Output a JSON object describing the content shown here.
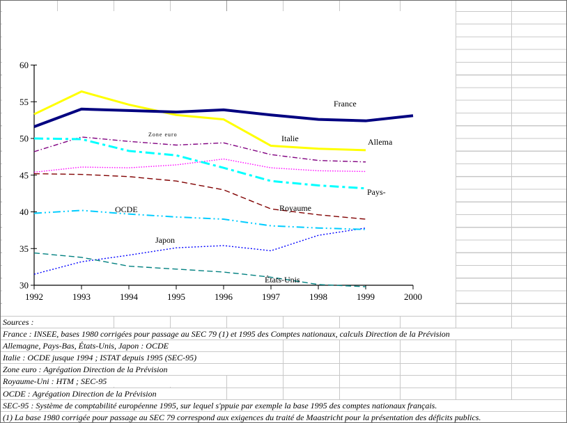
{
  "chart_data": {
    "type": "line",
    "x": [
      1992,
      1993,
      1994,
      1995,
      1996,
      1997,
      1998,
      1999,
      2000
    ],
    "ylim": [
      30,
      60
    ],
    "y_ticks": [
      30,
      35,
      40,
      45,
      50,
      55,
      60
    ],
    "x_ticks": [
      "1992",
      "1993",
      "1994",
      "1995",
      "1996",
      "1997",
      "1998",
      "1999",
      "2000"
    ],
    "grid": false,
    "legend": "inline-labels",
    "series": [
      {
        "name": "Japon",
        "label": "Japon",
        "color": "#0000FF",
        "stroke_width": 1.4,
        "dash": "dot",
        "values": [
          31.5,
          33.2,
          34.1,
          35.1,
          35.4,
          34.7,
          36.8,
          37.8,
          null
        ]
      },
      {
        "name": "Etats-Unis",
        "label": "États-Unis",
        "color": "#008080",
        "stroke_width": 1.4,
        "dash": "dash",
        "values": [
          34.4,
          33.8,
          32.6,
          32.2,
          31.8,
          31.1,
          30.1,
          29.8,
          null
        ]
      },
      {
        "name": "OCDE",
        "label": "OCDE",
        "color": "#00CCFF",
        "stroke_width": 2,
        "dash": "dashdotdot",
        "values": [
          39.8,
          40.2,
          39.7,
          39.3,
          39.0,
          38.1,
          37.8,
          37.6,
          null
        ]
      },
      {
        "name": "Royaume-Uni",
        "label": "Royaume",
        "color": "#800000",
        "stroke_width": 1.4,
        "dash": "dash",
        "values": [
          45.2,
          45.1,
          44.8,
          44.2,
          43.0,
          40.4,
          39.6,
          39.0,
          null
        ]
      },
      {
        "name": "Allemagne",
        "label": "Allema",
        "color": "#FF00FF",
        "stroke_width": 1.4,
        "dash": "finedot",
        "values": [
          45.4,
          46.1,
          46.0,
          46.4,
          47.2,
          46.0,
          45.6,
          45.5,
          null
        ]
      },
      {
        "name": "Zone euro",
        "label": "Zone euro",
        "color": "#800080",
        "stroke_width": 1.4,
        "dash": "dashdot",
        "values": [
          48.2,
          50.2,
          49.6,
          49.1,
          49.4,
          47.8,
          47.0,
          46.8,
          null
        ]
      },
      {
        "name": "Pays-Bas",
        "label": "Pays-",
        "color": "#00FFFF",
        "stroke_width": 3,
        "dash": "longdashdot",
        "values": [
          50.0,
          49.9,
          48.3,
          47.7,
          46.0,
          44.2,
          43.6,
          43.2,
          null
        ]
      },
      {
        "name": "Italie",
        "label": "Italie",
        "color": "#FFFF00",
        "stroke_width": 3,
        "dash": "solid",
        "values": [
          53.3,
          56.4,
          54.6,
          53.2,
          52.6,
          49.0,
          48.6,
          48.4,
          null
        ]
      },
      {
        "name": "France",
        "label": "France",
        "color": "#000080",
        "stroke_width": 4,
        "dash": "solid",
        "values": [
          51.6,
          54.0,
          53.8,
          53.6,
          53.9,
          53.2,
          52.6,
          52.4,
          53.1
        ]
      }
    ]
  },
  "footer": {
    "rows": [
      "Sources :",
      "France : INSEE, bases 1980 corrigées pour passage au SEC 79 (1) et 1995 des Comptes nationaux, calculs Direction de la Prévision",
      "Allemagne, Pays-Bas, États-Unis, Japon  : OCDE",
      "Italie : OCDE jusque 1994 ; ISTAT depuis 1995 (SEC-95)",
      "Zone euro : Agrégation Direction de la Prévision",
      "Royaume-Uni : HTM ; SEC-95",
      "OCDE : Agrégation Direction de la Prévision",
      "SEC-95 : Système de comptabilité européenne 1995, sur lequel s'ppuie par exemple la base 1995 des comptes nationaux français.",
      "(1) La base 1980 corrigée pour passage au SEC 79 correspond aux exigences du traité de Maastricht pour la présentation des déficits publics."
    ]
  },
  "colors": {
    "grid": "#c8c8c8",
    "grid_dark": "#9a9a9a",
    "axis": "#000000"
  }
}
